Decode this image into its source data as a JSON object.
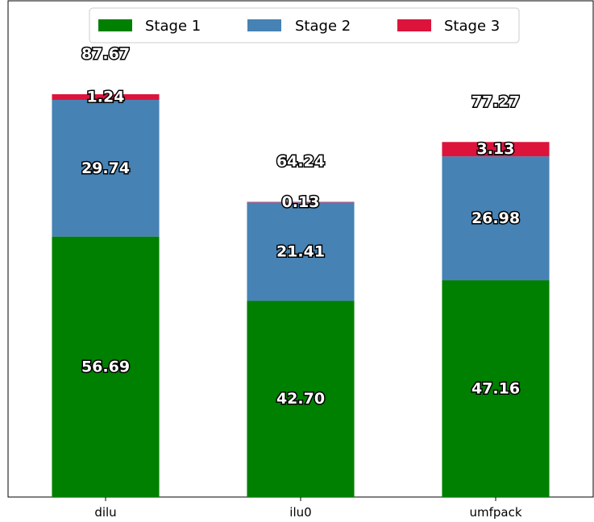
{
  "chart_data": {
    "type": "bar",
    "stacked": true,
    "categories": [
      "dilu",
      "ilu0",
      "umfpack"
    ],
    "series": [
      {
        "name": "Stage 1",
        "color": "#008000",
        "values": [
          56.69,
          42.7,
          47.16
        ],
        "labels": [
          "56.69",
          "42.70",
          "47.16"
        ]
      },
      {
        "name": "Stage 2",
        "color": "#4682b4",
        "values": [
          29.74,
          21.41,
          26.98
        ],
        "labels": [
          "29.74",
          "21.41",
          "26.98"
        ]
      },
      {
        "name": "Stage 3",
        "color": "#dc143c",
        "values": [
          1.24,
          0.13,
          3.13
        ],
        "labels": [
          "1.24",
          "0.13",
          "3.13"
        ]
      }
    ],
    "totals": [
      "87.67",
      "64.24",
      "77.27"
    ],
    "ylim": [
      0,
      108
    ],
    "y_axis_visible": false,
    "grid": false,
    "legend_position": "top-center",
    "title": "",
    "xlabel": "",
    "ylabel": ""
  }
}
